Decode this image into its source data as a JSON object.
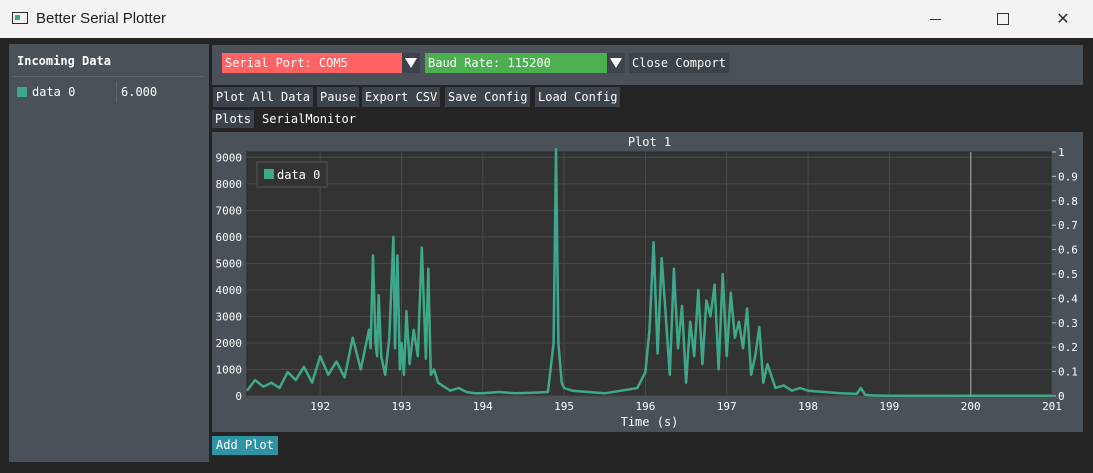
{
  "window": {
    "title": "Better Serial Plotter",
    "icon": "app-icon"
  },
  "incoming": {
    "header": "Incoming Data",
    "rows": [
      {
        "name": "data 0",
        "value": "6.000",
        "color": "#3ea98a"
      }
    ]
  },
  "controls": {
    "serial_port_label": "Serial Port: COM5",
    "baud_rate_label": "Baud Rate: 115200",
    "close_comport": "Close Comport",
    "serial_color": "#ff6363",
    "baud_color": "#4caf50"
  },
  "toolbar": {
    "plot_all": "Plot All Data",
    "pause": "Pause",
    "export_csv": "Export CSV",
    "save_config": "Save Config",
    "load_config": "Load Config"
  },
  "tabs": [
    {
      "label": "Plots",
      "active": true
    },
    {
      "label": "SerialMonitor",
      "active": false
    }
  ],
  "add_plot": "Add Plot",
  "chart_data": {
    "type": "line",
    "title": "Plot 1",
    "xlabel": "Time (s)",
    "ylabel": "",
    "xlim": [
      191.1,
      201
    ],
    "ylim": [
      0,
      9200
    ],
    "y2lim": [
      0,
      1
    ],
    "grid": true,
    "legend_position": "top-left",
    "xticks": [
      192,
      193,
      194,
      195,
      196,
      197,
      198,
      199,
      200,
      201
    ],
    "yticks": [
      0,
      1000,
      2000,
      3000,
      4000,
      5000,
      6000,
      7000,
      8000,
      9000
    ],
    "y2ticks": [
      "0",
      "0.1",
      "0.2",
      "0.3",
      "0.4",
      "0.5",
      "0.6",
      "0.7",
      "0.8",
      "0.9",
      "1"
    ],
    "y2tick_values": [
      0,
      0.1,
      0.2,
      0.3,
      0.4,
      0.5,
      0.6,
      0.7,
      0.8,
      0.9,
      1
    ],
    "cursor_x": 200,
    "series": [
      {
        "name": "data 0",
        "color": "#3ea98a",
        "x": [
          191.1,
          191.2,
          191.3,
          191.4,
          191.5,
          191.6,
          191.7,
          191.8,
          191.9,
          192.0,
          192.1,
          192.2,
          192.3,
          192.4,
          192.5,
          192.6,
          192.62,
          192.65,
          192.68,
          192.7,
          192.72,
          192.75,
          192.8,
          192.85,
          192.9,
          192.92,
          192.95,
          192.98,
          193.0,
          193.03,
          193.06,
          193.1,
          193.15,
          193.2,
          193.25,
          193.3,
          193.33,
          193.36,
          193.4,
          193.45,
          193.5,
          193.6,
          193.7,
          193.8,
          193.9,
          194.0,
          194.2,
          194.4,
          194.6,
          194.8,
          194.87,
          194.9,
          194.93,
          194.97,
          195.0,
          195.1,
          195.3,
          195.5,
          195.7,
          195.9,
          196.0,
          196.05,
          196.1,
          196.15,
          196.2,
          196.25,
          196.3,
          196.35,
          196.4,
          196.45,
          196.5,
          196.55,
          196.6,
          196.65,
          196.7,
          196.75,
          196.8,
          196.85,
          196.9,
          196.95,
          197.0,
          197.05,
          197.1,
          197.15,
          197.2,
          197.25,
          197.3,
          197.35,
          197.4,
          197.45,
          197.5,
          197.6,
          197.7,
          197.8,
          197.9,
          198.0,
          198.2,
          198.4,
          198.6,
          198.65,
          198.7,
          198.8,
          199.0,
          199.5,
          200.0,
          200.5,
          201.0
        ],
        "y": [
          200,
          600,
          350,
          500,
          300,
          900,
          600,
          1100,
          500,
          1500,
          800,
          1300,
          700,
          2200,
          1000,
          2500,
          1800,
          5300,
          2000,
          1500,
          3800,
          1500,
          800,
          2200,
          6000,
          1800,
          5300,
          1000,
          2000,
          800,
          3200,
          1200,
          2500,
          1500,
          5600,
          1400,
          4800,
          800,
          1000,
          500,
          400,
          200,
          300,
          150,
          100,
          100,
          150,
          100,
          120,
          150,
          2000,
          9300,
          2000,
          500,
          300,
          200,
          150,
          100,
          200,
          300,
          900,
          2500,
          5800,
          1600,
          5200,
          3000,
          800,
          4800,
          1800,
          3400,
          500,
          2800,
          1500,
          4000,
          1200,
          3600,
          3000,
          4200,
          1000,
          4600,
          1500,
          3900,
          2200,
          2800,
          1800,
          3300,
          800,
          1500,
          2600,
          500,
          1200,
          300,
          400,
          200,
          300,
          200,
          150,
          100,
          80,
          300,
          50,
          20,
          10,
          5,
          6,
          6,
          6
        ]
      }
    ]
  }
}
